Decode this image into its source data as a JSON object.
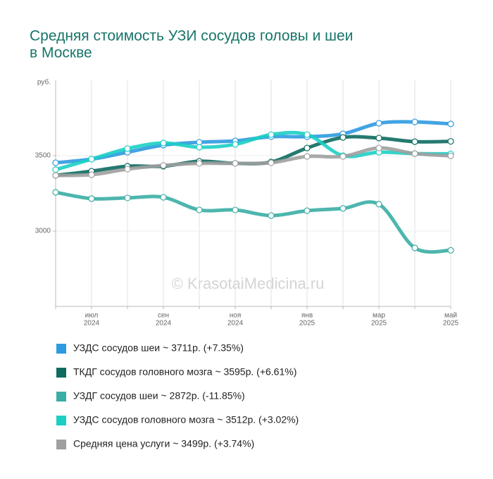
{
  "chart_data": {
    "type": "line",
    "title": [
      "Средняя стоимость УЗИ сосудов головы и шеи",
      "в Москве"
    ],
    "y_label": "руб.",
    "watermark": "© KrasotaiMedicina.ru",
    "categories": [
      null,
      [
        "июл",
        "2024"
      ],
      null,
      [
        "сен",
        "2024"
      ],
      null,
      [
        "ноя",
        "2024"
      ],
      null,
      [
        "янв",
        "2025"
      ],
      null,
      [
        "мар",
        "2025"
      ],
      null,
      [
        "май",
        "2025"
      ]
    ],
    "ylim": [
      2500,
      4000
    ],
    "yticks": [
      3000,
      3500
    ],
    "grid": true,
    "series": [
      {
        "name": "УЗДС сосудов шеи ~ 3711р. (+7.35%)",
        "color": "#2e9ae0",
        "values": [
          3453,
          3477,
          3523,
          3570,
          3589,
          3598,
          3626,
          3626,
          3645,
          3715,
          3724,
          3711
        ]
      },
      {
        "name": "ТКДГ сосудов головного мозга ~ 3595р. (+6.61%)",
        "color": "#0e6b60",
        "values": [
          3369,
          3397,
          3430,
          3430,
          3463,
          3449,
          3458,
          3551,
          3621,
          3617,
          3593,
          3595
        ]
      },
      {
        "name": "УЗДГ сосудов шеи ~ 2872р. (-11.85%)",
        "color": "#3aaea5",
        "values": [
          3257,
          3215,
          3220,
          3224,
          3140,
          3140,
          3103,
          3135,
          3150,
          3178,
          2888,
          2872
        ]
      },
      {
        "name": "УЗДС сосудов головного мозга ~ 3512р. (+3.02%)",
        "color": "#1ccfc4",
        "values": [
          3407,
          3477,
          3547,
          3584,
          3556,
          3575,
          3640,
          3640,
          3500,
          3523,
          3514,
          3512
        ]
      },
      {
        "name": "Средняя цена услуги ~ 3499р. (+3.74%)",
        "color": "#a0a0a0",
        "values": [
          3369,
          3374,
          3411,
          3435,
          3449,
          3449,
          3453,
          3495,
          3495,
          3551,
          3514,
          3499
        ]
      }
    ]
  }
}
